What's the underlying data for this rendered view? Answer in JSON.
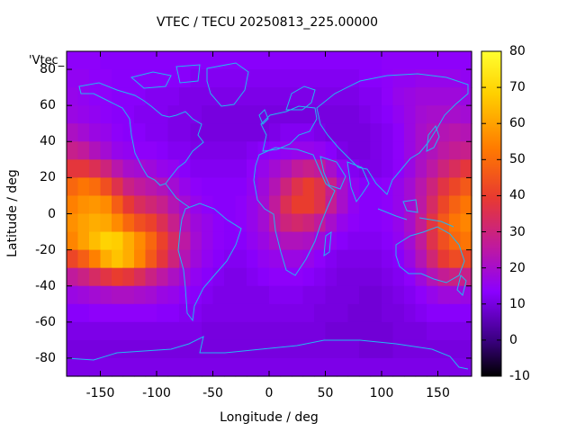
{
  "chart_data": {
    "type": "heatmap",
    "title": "VTEC / TECU 20250813_225.00000",
    "xlabel": "Longitude / deg",
    "ylabel": "Latitude / deg",
    "legend_key": "'Vtec_",
    "xlim": [
      -180,
      180
    ],
    "ylim": [
      -90,
      90
    ],
    "x_ticks": [
      "-150",
      "-100",
      "-50",
      "0",
      "50",
      "100",
      "150"
    ],
    "x_tick_values": [
      -150,
      -100,
      -50,
      0,
      50,
      100,
      150
    ],
    "y_ticks": [
      "-80",
      "-60",
      "-40",
      "-20",
      "0",
      "20",
      "40",
      "60",
      "80"
    ],
    "y_tick_values": [
      -80,
      -60,
      -40,
      -20,
      0,
      20,
      40,
      60,
      80
    ],
    "colorbar": {
      "range": [
        -10,
        80
      ],
      "ticks": [
        "-10",
        "0",
        "10",
        "20",
        "30",
        "40",
        "50",
        "60",
        "70",
        "80"
      ],
      "tick_values": [
        -10,
        0,
        10,
        20,
        30,
        40,
        50,
        60,
        70,
        80
      ],
      "colormap": [
        "#000000",
        "#3a0080",
        "#8b00ff",
        "#c01a9c",
        "#e83a30",
        "#ff7a00",
        "#ffd000",
        "#ffff30"
      ]
    },
    "grid_lon_step": 10,
    "grid_lat_step": 10,
    "grid_latitudes": [
      85,
      75,
      65,
      55,
      45,
      35,
      25,
      15,
      5,
      -5,
      -15,
      -25,
      -35,
      -45,
      -55,
      -65,
      -75,
      -85
    ],
    "grid_longitudes": [
      -175,
      -165,
      -155,
      -145,
      -135,
      -125,
      -115,
      -105,
      -95,
      -85,
      -75,
      -65,
      -55,
      -45,
      -35,
      -25,
      -15,
      -5,
      5,
      15,
      25,
      35,
      45,
      55,
      65,
      75,
      85,
      95,
      105,
      115,
      125,
      135,
      145,
      155,
      165,
      175
    ],
    "values": [
      [
        14,
        14,
        14,
        13,
        13,
        13,
        13,
        13,
        13,
        13,
        13,
        13,
        13,
        13,
        13,
        13,
        13,
        13,
        13,
        13,
        13,
        13,
        13,
        13,
        13,
        13,
        13,
        13,
        14,
        14,
        14,
        14,
        14,
        14,
        14,
        14
      ],
      [
        15,
        15,
        14,
        14,
        13,
        13,
        13,
        13,
        13,
        13,
        13,
        12,
        12,
        12,
        12,
        12,
        12,
        12,
        12,
        12,
        12,
        12,
        12,
        12,
        12,
        12,
        13,
        13,
        14,
        15,
        15,
        16,
        16,
        16,
        16,
        15
      ],
      [
        16,
        15,
        14,
        14,
        13,
        13,
        13,
        12,
        12,
        12,
        11,
        11,
        11,
        11,
        11,
        11,
        11,
        11,
        11,
        11,
        11,
        11,
        11,
        11,
        11,
        11,
        12,
        12,
        14,
        16,
        17,
        18,
        18,
        18,
        18,
        17
      ],
      [
        17,
        16,
        15,
        14,
        13,
        13,
        12,
        12,
        12,
        11,
        11,
        11,
        10,
        10,
        10,
        10,
        10,
        10,
        10,
        10,
        10,
        10,
        10,
        10,
        10,
        10,
        11,
        12,
        13,
        15,
        17,
        19,
        20,
        20,
        20,
        19
      ],
      [
        21,
        19,
        17,
        16,
        14,
        13,
        13,
        12,
        12,
        11,
        11,
        10,
        10,
        10,
        10,
        10,
        10,
        10,
        11,
        12,
        12,
        12,
        11,
        10,
        10,
        10,
        10,
        11,
        12,
        14,
        17,
        20,
        22,
        23,
        24,
        23
      ],
      [
        28,
        26,
        22,
        19,
        16,
        15,
        14,
        14,
        13,
        12,
        12,
        11,
        11,
        11,
        11,
        11,
        12,
        13,
        14,
        15,
        16,
        16,
        15,
        13,
        11,
        10,
        10,
        11,
        12,
        14,
        17,
        20,
        22,
        25,
        27,
        28
      ],
      [
        38,
        38,
        35,
        30,
        24,
        20,
        19,
        18,
        16,
        15,
        13,
        12,
        12,
        12,
        12,
        12,
        14,
        16,
        19,
        22,
        26,
        28,
        26,
        20,
        15,
        12,
        11,
        11,
        12,
        14,
        17,
        21,
        25,
        30,
        34,
        38
      ],
      [
        49,
        52,
        50,
        44,
        36,
        29,
        26,
        24,
        22,
        19,
        16,
        14,
        13,
        13,
        13,
        13,
        15,
        18,
        23,
        30,
        36,
        40,
        36,
        28,
        20,
        15,
        13,
        13,
        14,
        16,
        19,
        24,
        30,
        37,
        42,
        46
      ],
      [
        54,
        57,
        58,
        56,
        47,
        39,
        34,
        31,
        28,
        23,
        19,
        16,
        14,
        13,
        13,
        14,
        16,
        19,
        26,
        35,
        40,
        40,
        36,
        27,
        20,
        15,
        13,
        13,
        14,
        16,
        19,
        25,
        33,
        42,
        48,
        52
      ],
      [
        57,
        60,
        62,
        61,
        56,
        49,
        44,
        41,
        35,
        28,
        22,
        18,
        16,
        14,
        13,
        14,
        16,
        19,
        25,
        30,
        32,
        30,
        26,
        20,
        16,
        14,
        13,
        13,
        14,
        16,
        20,
        27,
        37,
        46,
        52,
        55
      ],
      [
        55,
        60,
        65,
        69,
        68,
        62,
        56,
        49,
        41,
        33,
        25,
        19,
        16,
        14,
        13,
        13,
        15,
        17,
        20,
        22,
        22,
        21,
        18,
        15,
        13,
        12,
        12,
        12,
        13,
        15,
        19,
        26,
        36,
        44,
        49,
        52
      ],
      [
        42,
        47,
        54,
        62,
        66,
        62,
        55,
        46,
        38,
        30,
        23,
        18,
        15,
        13,
        12,
        12,
        13,
        15,
        16,
        17,
        17,
        16,
        14,
        12,
        11,
        11,
        11,
        11,
        12,
        13,
        17,
        23,
        31,
        39,
        43,
        42
      ],
      [
        26,
        29,
        33,
        37,
        40,
        38,
        34,
        29,
        25,
        21,
        18,
        15,
        13,
        12,
        11,
        11,
        12,
        13,
        14,
        14,
        14,
        13,
        12,
        11,
        10,
        10,
        10,
        10,
        11,
        12,
        14,
        18,
        23,
        27,
        29,
        28
      ],
      [
        17,
        18,
        19,
        20,
        21,
        21,
        20,
        19,
        17,
        16,
        14,
        13,
        12,
        11,
        11,
        11,
        11,
        11,
        12,
        12,
        12,
        11,
        11,
        10,
        10,
        10,
        9,
        9,
        10,
        11,
        12,
        14,
        16,
        18,
        18,
        17
      ],
      [
        13,
        13,
        14,
        14,
        14,
        14,
        14,
        14,
        13,
        13,
        12,
        12,
        11,
        11,
        11,
        11,
        11,
        11,
        11,
        11,
        11,
        11,
        10,
        10,
        10,
        9,
        9,
        9,
        10,
        10,
        11,
        12,
        13,
        13,
        13,
        13
      ],
      [
        11,
        11,
        11,
        11,
        11,
        11,
        11,
        11,
        11,
        11,
        11,
        11,
        10,
        10,
        10,
        10,
        10,
        10,
        10,
        10,
        10,
        10,
        10,
        9,
        9,
        9,
        9,
        9,
        9,
        10,
        10,
        10,
        11,
        11,
        11,
        11
      ],
      [
        10,
        10,
        10,
        10,
        10,
        10,
        10,
        10,
        10,
        10,
        10,
        10,
        10,
        10,
        10,
        10,
        10,
        10,
        10,
        10,
        10,
        10,
        10,
        10,
        10,
        10,
        9,
        9,
        9,
        10,
        10,
        10,
        10,
        10,
        10,
        10
      ],
      [
        11,
        11,
        11,
        11,
        11,
        11,
        11,
        11,
        11,
        11,
        11,
        11,
        11,
        11,
        11,
        11,
        11,
        11,
        11,
        11,
        11,
        11,
        11,
        11,
        11,
        11,
        11,
        11,
        11,
        11,
        11,
        11,
        11,
        11,
        11,
        11
      ]
    ]
  }
}
